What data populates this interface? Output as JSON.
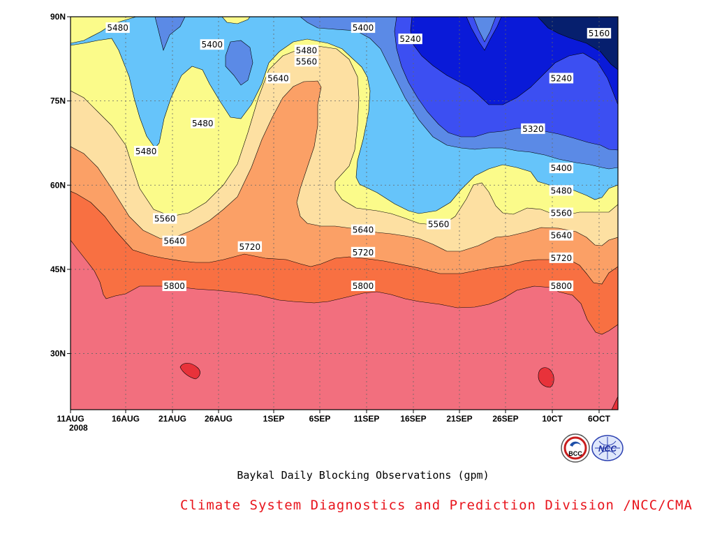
{
  "chart_data": {
    "type": "contour",
    "title": "Baykal Daily Blocking Observations (gpm)",
    "credit": "Climate System Diagnostics and Prediction Division /NCC/CMA",
    "x_tick_labels": [
      "11AUG",
      "16AUG",
      "21AUG",
      "26AUG",
      "1SEP",
      "6SEP",
      "11SEP",
      "16SEP",
      "21SEP",
      "26SEP",
      "10CT",
      "6OCT"
    ],
    "x_year_label": "2008",
    "y_tick_labels": [
      "90N",
      "75N",
      "60N",
      "45N",
      "30N"
    ],
    "ylim": [
      20,
      90
    ],
    "x_range": [
      "11AUG 2008",
      "7OCT 2008"
    ],
    "levels": [
      5160,
      5240,
      5320,
      5400,
      5480,
      5560,
      5640,
      5720,
      5800,
      5880
    ],
    "band_colors": [
      "#061f6e",
      "#0a1ad8",
      "#3c4ff2",
      "#5b8ae6",
      "#66c4fa",
      "#fbfb8a",
      "#fde0a2",
      "#fba066",
      "#f87042",
      "#f26f7e",
      "#e8323a"
    ],
    "contour_labels": [
      {
        "text": "5480",
        "date": "16AUG",
        "lat": 88
      },
      {
        "text": "5400",
        "date": "26AUG",
        "lat": 85
      },
      {
        "text": "5400",
        "date": "11SEP",
        "lat": 88
      },
      {
        "text": "5240",
        "date": "16SEP",
        "lat": 86
      },
      {
        "text": "5160",
        "date": "6OCT",
        "lat": 87
      },
      {
        "text": "5480",
        "date": "5SEP",
        "lat": 84
      },
      {
        "text": "5560",
        "date": "5SEP",
        "lat": 82
      },
      {
        "text": "5640",
        "date": "2SEP",
        "lat": 79
      },
      {
        "text": "5240",
        "date": "2OCT",
        "lat": 79
      },
      {
        "text": "5480",
        "date": "25AUG",
        "lat": 71
      },
      {
        "text": "5320",
        "date": "29SEP",
        "lat": 70
      },
      {
        "text": "5480",
        "date": "19AUG",
        "lat": 66
      },
      {
        "text": "5400",
        "date": "2OCT",
        "lat": 63
      },
      {
        "text": "5480",
        "date": "2OCT",
        "lat": 59
      },
      {
        "text": "5560",
        "date": "2OCT",
        "lat": 55
      },
      {
        "text": "5560",
        "date": "21AUG",
        "lat": 54
      },
      {
        "text": "5560",
        "date": "19SEP",
        "lat": 53
      },
      {
        "text": "5640",
        "date": "11SEP",
        "lat": 52
      },
      {
        "text": "5640",
        "date": "2OCT",
        "lat": 51
      },
      {
        "text": "5640",
        "date": "22AUG",
        "lat": 50
      },
      {
        "text": "5720",
        "date": "30AUG",
        "lat": 49
      },
      {
        "text": "5720",
        "date": "11SEP",
        "lat": 48
      },
      {
        "text": "5720",
        "date": "2OCT",
        "lat": 47
      },
      {
        "text": "5800",
        "date": "22AUG",
        "lat": 42
      },
      {
        "text": "5800",
        "date": "11SEP",
        "lat": 42
      },
      {
        "text": "5800",
        "date": "2OCT",
        "lat": 42
      }
    ]
  },
  "logos": [
    {
      "icon": "bcc-logo-icon",
      "text": "BCC"
    },
    {
      "icon": "ncc-logo-icon",
      "text": "NCC"
    }
  ]
}
